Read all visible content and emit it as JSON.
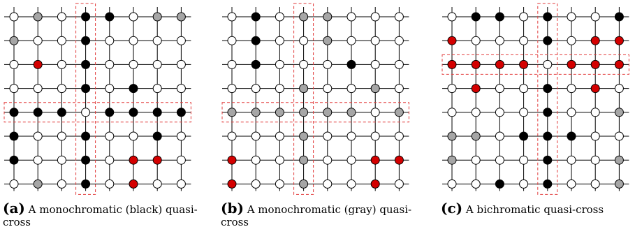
{
  "colors": {
    "white": "#ffffff",
    "black": "#000000",
    "gray": "#a6a6a6",
    "red": "#d40000",
    "highlight": "#e23b3b",
    "line": "#000000"
  },
  "panels": [
    {
      "tag": "(a)",
      "caption_line1": "A monochromatic (black) quasi-",
      "caption_line2": "cross",
      "highlight_row": 4,
      "highlight_col": 3,
      "grid": [
        "WGWBBWGG",
        "GWWBWWWW",
        "WRWBWWWW",
        "WWWBWBWW",
        "BBBWBBBB",
        "BWWBWWBW",
        "BWWBWRRW",
        "WGWBWRWW"
      ]
    },
    {
      "tag": "(b)",
      "caption_line1": "A monochromatic (gray) quasi-",
      "caption_line2": "cross",
      "highlight_row": 4,
      "highlight_col": 3,
      "grid": [
        "WBWGGWWW",
        "WBWWGWWW",
        "WBWWWBWW",
        "WWWGWWGW",
        "GGGGGGWG",
        "WWWGWWWW",
        "RWWGWWRR",
        "RWWGWWRW"
      ]
    },
    {
      "tag": "(c)",
      "caption_line1": "A bichromatic quasi-cross",
      "caption_line2": "",
      "highlight_row": 2,
      "highlight_col": 4,
      "grid": [
        "WBBWBWWB",
        "RWWWBWRR",
        "RRRRWRRR",
        "WRWWBWRW",
        "WWWWBWWG",
        "GGWBBBWW",
        "GWWWBWWG",
        "WWBWBWWG"
      ]
    }
  ]
}
